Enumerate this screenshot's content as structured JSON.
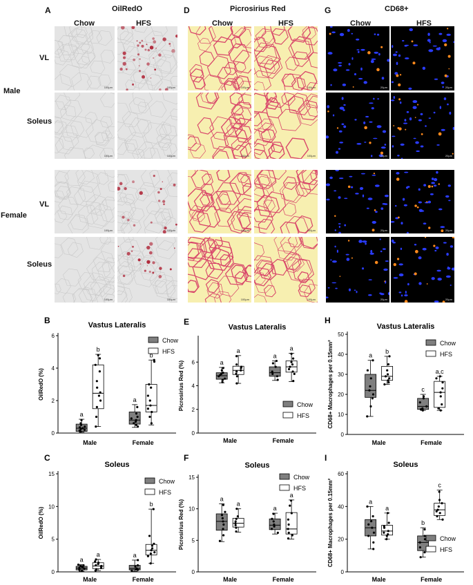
{
  "panels": {
    "A": "A",
    "D": "D",
    "G": "G",
    "B": "B",
    "E": "E",
    "H": "H",
    "C": "C",
    "F": "F",
    "I": "I"
  },
  "columns": {
    "oil_title": "OilRedO",
    "picro_title": "Picrosirius Red",
    "cd68_title": "CD68+",
    "chow": "Chow",
    "hfs": "HFS"
  },
  "rows": {
    "male": "Male",
    "female": "Female",
    "vl": "VL",
    "soleus": "Soleus"
  },
  "scalebars": {
    "oil": "100μm",
    "picro": "100μm",
    "cd68": "20μm"
  },
  "colors": {
    "chow_fill": "#7f7f7f",
    "hfs_fill": "#ffffff",
    "oil_bg": "#e4e4e4",
    "oil_stain": "#b0283a",
    "picro_bg": "#f7efb0",
    "picro_line": "#d8456a",
    "cd68_bg": "#000000",
    "cd68_blue": "#2a3cff",
    "cd68_orange": "#ff8a1c"
  },
  "chart_data": [
    {
      "id": "B",
      "type": "box",
      "title": "Vastus Lateralis",
      "ylabel": "OilRedO (%)",
      "ylim": [
        0,
        6
      ],
      "yticks": [
        0,
        2,
        4,
        6
      ],
      "categories": [
        "Male",
        "Female"
      ],
      "legend": [
        "Chow",
        "HFS"
      ],
      "series": [
        {
          "name": "Chow",
          "boxes": [
            {
              "min": 0.05,
              "q1": 0.1,
              "median": 0.3,
              "q3": 0.55,
              "max": 0.85,
              "letter": "a",
              "points": [
                0.1,
                0.15,
                0.2,
                0.25,
                0.3,
                0.35,
                0.4,
                0.5,
                0.6,
                0.8
              ]
            },
            {
              "min": 0.35,
              "q1": 0.55,
              "median": 0.8,
              "q3": 1.3,
              "max": 1.75,
              "letter": "a",
              "points": [
                0.4,
                0.5,
                0.6,
                0.7,
                0.8,
                0.9,
                1.0,
                1.2,
                1.6
              ]
            }
          ]
        },
        {
          "name": "HFS",
          "boxes": [
            {
              "min": 0.4,
              "q1": 1.5,
              "median": 2.45,
              "q3": 4.2,
              "max": 4.85,
              "letter": "b",
              "points": [
                0.4,
                1.0,
                1.6,
                2.0,
                2.3,
                2.5,
                2.8,
                3.2,
                3.8,
                4.2,
                4.6,
                4.8
              ]
            },
            {
              "min": 0.5,
              "q1": 1.3,
              "median": 1.7,
              "q3": 3.0,
              "max": 4.5,
              "letter": "b",
              "points": [
                0.6,
                1.0,
                1.3,
                1.5,
                1.7,
                2.0,
                2.3,
                2.8,
                3.0,
                4.4,
                4.5
              ]
            }
          ]
        }
      ]
    },
    {
      "id": "C",
      "type": "box",
      "title": "Soleus",
      "ylabel": "OilRedO (%)",
      "ylim": [
        0,
        15
      ],
      "yticks": [
        0,
        5,
        10,
        15
      ],
      "categories": [
        "Male",
        "Female"
      ],
      "legend": [
        "Chow",
        "HFS"
      ],
      "series": [
        {
          "name": "Chow",
          "boxes": [
            {
              "min": 0.1,
              "q1": 0.3,
              "median": 0.55,
              "q3": 0.85,
              "max": 1.1,
              "letter": "a",
              "points": [
                0.2,
                0.3,
                0.4,
                0.5,
                0.6,
                0.7,
                0.8,
                0.9,
                1.0,
                1.1
              ]
            },
            {
              "min": 0.1,
              "q1": 0.3,
              "median": 0.5,
              "q3": 1.0,
              "max": 1.8,
              "letter": "a",
              "points": [
                0.2,
                0.3,
                0.4,
                0.5,
                0.8,
                1.0,
                1.8
              ]
            }
          ]
        },
        {
          "name": "HFS",
          "boxes": [
            {
              "min": 0.2,
              "q1": 0.5,
              "median": 0.9,
              "q3": 1.4,
              "max": 1.9,
              "letter": "a",
              "points": [
                0.2,
                0.4,
                0.6,
                0.8,
                0.9,
                1.0,
                1.2,
                1.4,
                1.6,
                1.9
              ]
            },
            {
              "min": 1.3,
              "q1": 2.6,
              "median": 3.3,
              "q3": 4.2,
              "max": 9.6,
              "letter": "b",
              "points": [
                1.3,
                2.4,
                2.8,
                3.0,
                3.3,
                3.6,
                4.0,
                4.3,
                5.5,
                9.6
              ]
            }
          ]
        }
      ]
    },
    {
      "id": "E",
      "type": "box",
      "title": "Vastus Lateralis",
      "ylabel": "Picrosirius Red (%)",
      "ylim": [
        0,
        8
      ],
      "yticks": [
        0,
        2,
        4,
        6
      ],
      "categories": [
        "Male",
        "Female"
      ],
      "legend": [
        "Chow",
        "HFS"
      ],
      "series": [
        {
          "name": "Chow",
          "boxes": [
            {
              "min": 4.25,
              "q1": 4.55,
              "median": 4.85,
              "q3": 5.1,
              "max": 5.55,
              "letter": "a",
              "points": [
                4.3,
                4.5,
                4.6,
                4.8,
                4.9,
                5.0,
                5.1,
                5.3,
                5.5
              ]
            },
            {
              "min": 4.45,
              "q1": 4.8,
              "median": 5.1,
              "q3": 5.6,
              "max": 6.1,
              "letter": "a",
              "points": [
                4.5,
                4.8,
                5.0,
                5.2,
                5.6,
                5.9,
                6.1
              ]
            }
          ]
        },
        {
          "name": "HFS",
          "boxes": [
            {
              "min": 4.2,
              "q1": 4.95,
              "median": 5.3,
              "q3": 5.65,
              "max": 6.55,
              "letter": "a",
              "points": [
                4.2,
                4.8,
                5.0,
                5.2,
                5.3,
                5.5,
                5.6,
                5.8,
                6.5
              ]
            },
            {
              "min": 4.35,
              "q1": 5.15,
              "median": 5.6,
              "q3": 6.1,
              "max": 6.75,
              "letter": "a",
              "points": [
                4.4,
                5.0,
                5.2,
                5.4,
                5.6,
                5.8,
                6.0,
                6.3,
                6.7
              ]
            }
          ]
        }
      ]
    },
    {
      "id": "F",
      "type": "box",
      "title": "Soleus",
      "ylabel": "Picrosirius Red (%)",
      "ylim": [
        0,
        15
      ],
      "yticks": [
        0,
        5,
        10,
        15
      ],
      "categories": [
        "Male",
        "Female"
      ],
      "legend": [
        "Chow",
        "HFS"
      ],
      "series": [
        {
          "name": "Chow",
          "boxes": [
            {
              "min": 4.8,
              "q1": 6.6,
              "median": 8.0,
              "q3": 9.2,
              "max": 10.8,
              "letter": "a",
              "points": [
                4.9,
                5.8,
                6.8,
                7.5,
                8.0,
                8.5,
                9.0,
                9.5,
                10.6
              ]
            },
            {
              "min": 6.0,
              "q1": 6.7,
              "median": 7.4,
              "q3": 8.4,
              "max": 9.3,
              "letter": "a",
              "points": [
                6.2,
                6.8,
                7.2,
                7.5,
                8.0,
                8.4,
                9.2
              ]
            }
          ]
        },
        {
          "name": "HFS",
          "boxes": [
            {
              "min": 6.3,
              "q1": 7.1,
              "median": 7.7,
              "q3": 8.5,
              "max": 10.0,
              "letter": "a",
              "points": [
                6.4,
                7.0,
                7.4,
                7.7,
                8.0,
                8.4,
                8.8,
                10.0
              ]
            },
            {
              "min": 5.2,
              "q1": 6.0,
              "median": 6.8,
              "q3": 9.4,
              "max": 11.4,
              "letter": "a",
              "points": [
                5.3,
                5.8,
                6.2,
                6.8,
                7.5,
                8.3,
                9.3,
                10.5,
                11.3
              ]
            }
          ]
        }
      ]
    },
    {
      "id": "H",
      "type": "box",
      "title": "Vastus Lateralis",
      "ylabel": "CD68+ Macrophages per 0.15mm²",
      "ylim": [
        0,
        50
      ],
      "yticks": [
        0,
        10,
        20,
        30,
        40,
        50
      ],
      "categories": [
        "Male",
        "Female"
      ],
      "legend": [
        "Chow",
        "HFS"
      ],
      "series": [
        {
          "name": "Chow",
          "boxes": [
            {
              "min": 9,
              "q1": 18.5,
              "median": 22,
              "q3": 30,
              "max": 37,
              "letter": "a",
              "points": [
                9,
                14,
                18,
                20,
                22,
                24,
                28,
                32,
                37
              ]
            },
            {
              "min": 12,
              "q1": 12.5,
              "median": 14,
              "q3": 18,
              "max": 20,
              "letter": "c",
              "points": [
                12,
                12.5,
                13,
                14,
                16,
                18,
                19
              ]
            }
          ]
        },
        {
          "name": "HFS",
          "boxes": [
            {
              "min": 25,
              "q1": 27,
              "median": 29,
              "q3": 34,
              "max": 39,
              "letter": "b",
              "points": [
                25,
                26,
                27,
                28,
                29,
                30,
                32,
                35,
                39
              ]
            },
            {
              "min": 12,
              "q1": 13.5,
              "median": 21,
              "q3": 26.5,
              "max": 29,
              "letter": "a,c",
              "points": [
                12,
                13,
                15,
                19,
                21,
                23,
                26,
                28,
                29
              ]
            }
          ]
        }
      ]
    },
    {
      "id": "I",
      "type": "box",
      "title": "Soleus",
      "ylabel": "CD68+ Macrophages per 0.15mm²",
      "ylim": [
        0,
        60
      ],
      "yticks": [
        0,
        20,
        40,
        60
      ],
      "categories": [
        "Male",
        "Female"
      ],
      "legend": [
        "Chow",
        "HFS"
      ],
      "series": [
        {
          "name": "Chow",
          "boxes": [
            {
              "min": 14,
              "q1": 22,
              "median": 27,
              "q3": 32,
              "max": 40,
              "letter": "a",
              "points": [
                14,
                18,
                22,
                24,
                27,
                29,
                31,
                34,
                40
              ]
            },
            {
              "min": 9,
              "q1": 13,
              "median": 18,
              "q3": 22,
              "max": 27,
              "letter": "b",
              "points": [
                9,
                12,
                15,
                18,
                20,
                22,
                26
              ]
            }
          ]
        },
        {
          "name": "HFS",
          "boxes": [
            {
              "min": 20,
              "q1": 22.5,
              "median": 25,
              "q3": 28.5,
              "max": 36,
              "letter": "a",
              "points": [
                20,
                22,
                23,
                24,
                25,
                27,
                28,
                30,
                36
              ]
            },
            {
              "min": 32,
              "q1": 34.5,
              "median": 38,
              "q3": 42,
              "max": 50,
              "letter": "c",
              "points": [
                32,
                34,
                36,
                37,
                38,
                40,
                42,
                44,
                49
              ]
            }
          ]
        }
      ]
    }
  ]
}
